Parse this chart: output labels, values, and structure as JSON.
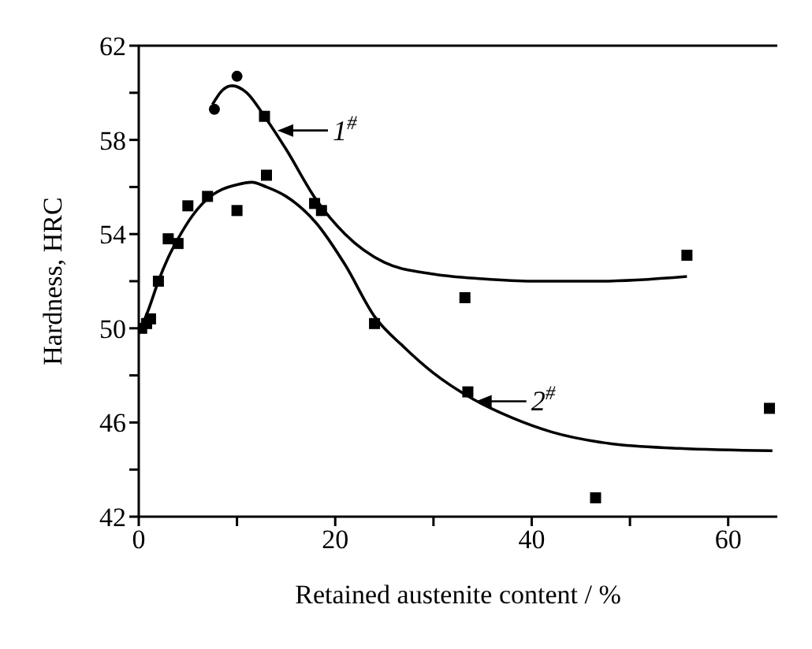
{
  "chart_data": {
    "type": "scatter",
    "xlabel": "Retained austenite content / %",
    "ylabel": "Hardness, HRC",
    "xlim": [
      0,
      65
    ],
    "ylim": [
      42,
      62
    ],
    "xticks": [
      0,
      {
        "value": 10,
        "label": null
      },
      20,
      {
        "value": 30,
        "label": null
      },
      40,
      {
        "value": 50,
        "label": null
      },
      60
    ],
    "yticks": [
      42,
      {
        "value": 44,
        "label": null
      },
      46,
      {
        "value": 48,
        "label": null
      },
      50,
      {
        "value": 52,
        "label": null
      },
      54,
      {
        "value": 56,
        "label": null
      },
      58,
      {
        "value": 60,
        "label": null
      },
      62
    ],
    "series": [
      {
        "type": "line",
        "color": "#000000",
        "marker": "none",
        "x": [
          7.5,
          8.5,
          9.5,
          11,
          12.8,
          15,
          18,
          21,
          25,
          30,
          35,
          40,
          47,
          55.8
        ],
        "values": [
          59.5,
          60.1,
          60.3,
          60,
          59,
          57.6,
          55.5,
          54,
          52.8,
          52.3,
          52.1,
          52,
          52,
          52.2
        ]
      },
      {
        "type": "line",
        "color": "#000000",
        "marker": "none",
        "x": [
          0,
          1,
          2,
          3,
          4,
          5.5,
          7,
          8.5,
          10,
          11.5,
          13,
          15,
          18,
          21,
          24,
          27,
          30,
          34,
          38,
          42,
          48,
          55,
          64.5
        ],
        "values": [
          49.8,
          50.8,
          52,
          53,
          53.8,
          54.8,
          55.5,
          55.9,
          56.1,
          56.2,
          56,
          55.6,
          54.5,
          52.7,
          50.5,
          49.2,
          48.1,
          47,
          46.2,
          45.6,
          45.1,
          44.9,
          44.8
        ]
      },
      {
        "color": "#000000",
        "marker": "circle",
        "x": [
          7.7,
          10
        ],
        "values": [
          59.3,
          60.7
        ]
      },
      {
        "color": "#000000",
        "marker": "square",
        "x": [
          12.8,
          33.2,
          55.8
        ],
        "values": [
          59,
          51.3,
          53.1
        ]
      },
      {
        "color": "#000000",
        "marker": "square",
        "x": [
          0.3,
          0.8,
          1.2,
          2,
          3,
          4,
          5,
          7,
          10,
          13,
          17.9,
          18.6,
          24,
          33.5,
          46.5,
          64.2
        ],
        "values": [
          50,
          50.2,
          50.4,
          52,
          53.8,
          53.6,
          55.2,
          55.6,
          55,
          56.5,
          55.3,
          55,
          50.2,
          47.3,
          42.8,
          46.6
        ]
      }
    ],
    "annotations": [
      {
        "text": "1$^{#}$",
        "x": 13.8,
        "y": 58.4
      },
      {
        "text": "2$^{#}$",
        "x": 34,
        "y": 46.9
      }
    ]
  }
}
